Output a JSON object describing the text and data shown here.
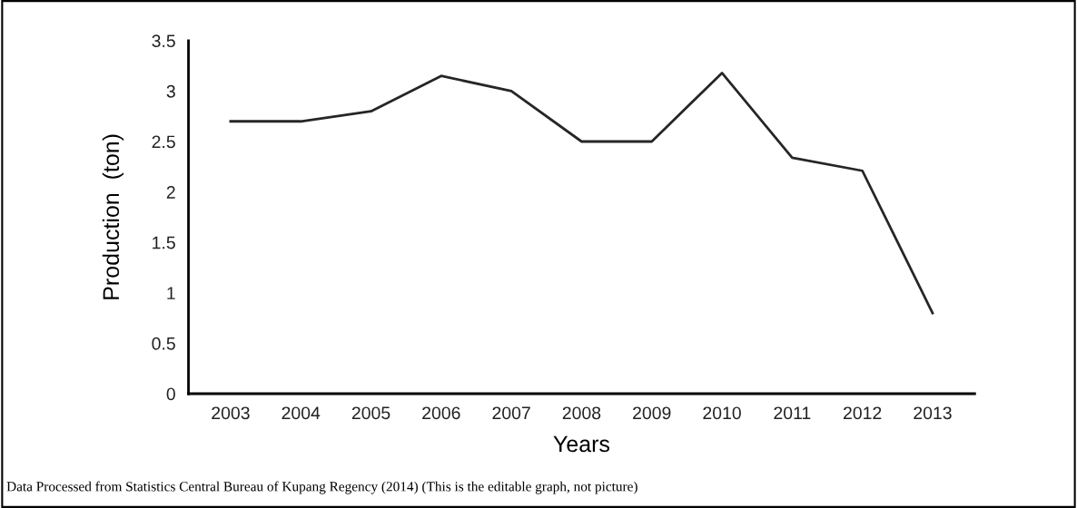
{
  "chart_data": {
    "type": "line",
    "xlabel": "Years",
    "ylabel": "Production  (ton)",
    "categories": [
      "2003",
      "2004",
      "2005",
      "2006",
      "2007",
      "2008",
      "2009",
      "2010",
      "2011",
      "2012",
      "2013"
    ],
    "series": [
      {
        "color": "#262626",
        "values": [
          2.7,
          2.7,
          2.8,
          3.15,
          3.0,
          2.5,
          2.5,
          3.18,
          2.34,
          2.21,
          0.8
        ]
      }
    ],
    "ylim": [
      0,
      3.5
    ],
    "yticks": [
      0,
      0.5,
      1,
      1.5,
      2,
      2.5,
      3,
      3.5
    ],
    "grid": false,
    "marker": "none",
    "line_style": "solid",
    "annotations": [
      "Data Processed from Statistics Central Bureau of Kupang Regency (2014) (This is the editable graph, not picture)"
    ]
  }
}
